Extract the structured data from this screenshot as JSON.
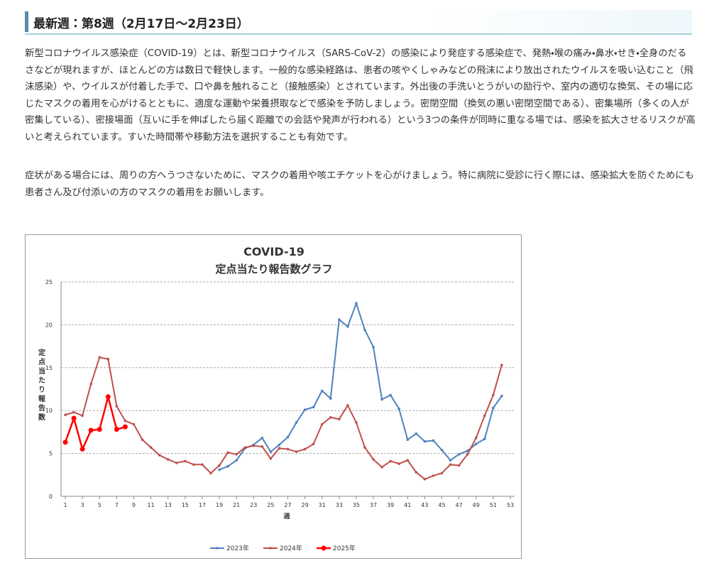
{
  "header": {
    "title": "最新週：第8週（2月17日～2月23日）"
  },
  "paragraphs": [
    "新型コロナウイルス感染症（COVID-19）とは、新型コロナウイルス（SARS-CoV-2）の感染により発症する感染症で、発熱・喉の痛み・鼻水・せき・全身のだるさなどが現れますが、ほとんどの方は数日で軽快します。一般的な感染経路は、患者の咳やくしゃみなどの飛沫により放出されたウイルスを吸い込むこと（飛沫感染）や、ウイルスが付着した手で、口や鼻を触れること（接触感染）とされています。外出後の手洗いとうがいの励行や、室内の適切な換気、その場に応じたマスクの着用を心がけるとともに、適度な運動や栄養摂取などで感染を予防しましょう。密閉空間（換気の悪い密閉空間である）、密集場所（多くの人が密集している）、密接場面（互いに手を伸ばしたら届く距離での会話や発声が行われる）という3つの条件が同時に重なる場では、感染を拡大させるリスクが高いと考えられています。すいた時間帯や移動方法を選択することも有効です。",
    "症状がある場合には、周りの方へうつさないために、マスクの着用や咳エチケットを心がけましょう。特に病院に受診に行く際には、感染拡大を防ぐためにも患者さん及び付添いの方のマスクの着用をお願いします。"
  ],
  "chart_data": {
    "type": "line",
    "title": "COVID-19",
    "subtitle": "定点当たり報告数グラフ",
    "y_label": "定点当たり報告数",
    "x_label": "週",
    "x": [
      1,
      2,
      3,
      4,
      5,
      6,
      7,
      8,
      9,
      10,
      11,
      12,
      13,
      14,
      15,
      16,
      17,
      18,
      19,
      20,
      21,
      22,
      23,
      24,
      25,
      26,
      27,
      28,
      29,
      30,
      31,
      32,
      33,
      34,
      35,
      36,
      37,
      38,
      39,
      40,
      41,
      42,
      43,
      44,
      45,
      46,
      47,
      48,
      49,
      50,
      51,
      52,
      53
    ],
    "xlim": [
      0.5,
      53.5
    ],
    "xticks": [
      1,
      3,
      5,
      7,
      9,
      11,
      13,
      15,
      17,
      19,
      21,
      23,
      25,
      27,
      29,
      31,
      33,
      35,
      37,
      39,
      41,
      43,
      45,
      47,
      49,
      51,
      53
    ],
    "ylim": [
      0,
      25
    ],
    "yticks": [
      0,
      5,
      10,
      15,
      20,
      25
    ],
    "grid": true,
    "legend": "bottom",
    "series": [
      {
        "name": "2023年",
        "color": "#4f81bd",
        "values": [
          null,
          null,
          null,
          null,
          null,
          null,
          null,
          null,
          null,
          null,
          null,
          null,
          null,
          null,
          null,
          null,
          null,
          null,
          3.1,
          3.5,
          4.2,
          5.6,
          6.0,
          6.8,
          5.2,
          6.0,
          6.9,
          8.6,
          10.1,
          10.4,
          12.3,
          11.4,
          20.6,
          19.8,
          22.5,
          19.4,
          17.4,
          11.3,
          11.8,
          10.2,
          6.6,
          7.3,
          6.4,
          6.5,
          5.4,
          4.2,
          4.9,
          5.3,
          6.1,
          6.7,
          10.3,
          11.7,
          null
        ]
      },
      {
        "name": "2024年",
        "color": "#c0504d",
        "values": [
          9.5,
          9.8,
          9.4,
          13.1,
          16.2,
          16.0,
          10.5,
          8.8,
          8.4,
          6.6,
          5.7,
          4.8,
          4.3,
          3.9,
          4.1,
          3.7,
          3.7,
          2.7,
          3.6,
          5.1,
          4.9,
          5.7,
          5.9,
          5.8,
          4.4,
          5.6,
          5.5,
          5.2,
          5.5,
          6.1,
          8.4,
          9.2,
          9.0,
          10.6,
          8.6,
          5.7,
          4.3,
          3.4,
          4.1,
          3.8,
          4.2,
          2.8,
          2.0,
          2.4,
          2.7,
          3.7,
          3.6,
          4.9,
          6.8,
          9.4,
          11.8,
          15.3,
          null
        ]
      },
      {
        "name": "2025年",
        "color": "#ff0000",
        "values": [
          6.3,
          9.1,
          5.5,
          7.7,
          7.8,
          11.6,
          7.8,
          8.1,
          null,
          null,
          null,
          null,
          null,
          null,
          null,
          null,
          null,
          null,
          null,
          null,
          null,
          null,
          null,
          null,
          null,
          null,
          null,
          null,
          null,
          null,
          null,
          null,
          null,
          null,
          null,
          null,
          null,
          null,
          null,
          null,
          null,
          null,
          null,
          null,
          null,
          null,
          null,
          null,
          null,
          null,
          null,
          null,
          null
        ]
      }
    ]
  }
}
